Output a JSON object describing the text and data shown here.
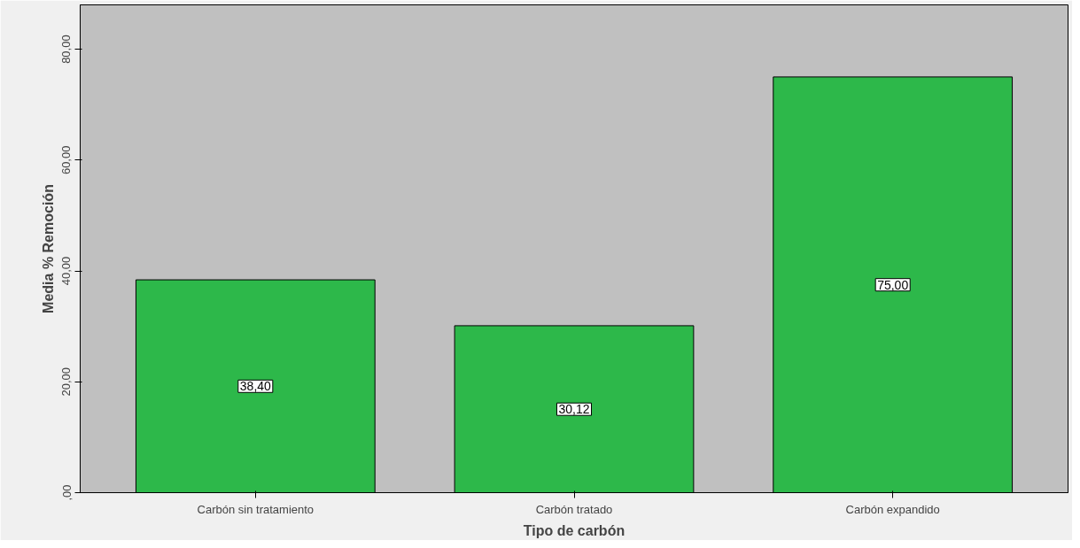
{
  "chart_data": {
    "type": "bar",
    "xlabel": "Tipo de carbón",
    "ylabel": "Media % Remoción",
    "categories": [
      "Carbón sin tratamiento",
      "Carbón tratado",
      "Carbón expandido"
    ],
    "values": [
      38.4,
      30.12,
      75.0
    ],
    "color": "#2db84a",
    "value_labels": [
      "38,40",
      "30,12",
      "75,00"
    ],
    "ylim": [
      0,
      88
    ],
    "yticks": [
      {
        "value": 0,
        "label": ",00"
      },
      {
        "value": 20,
        "label": "20,00"
      },
      {
        "value": 40,
        "label": "40,00"
      },
      {
        "value": 60,
        "label": "60,00"
      },
      {
        "value": 80,
        "label": "80,00"
      }
    ],
    "grid": false
  }
}
